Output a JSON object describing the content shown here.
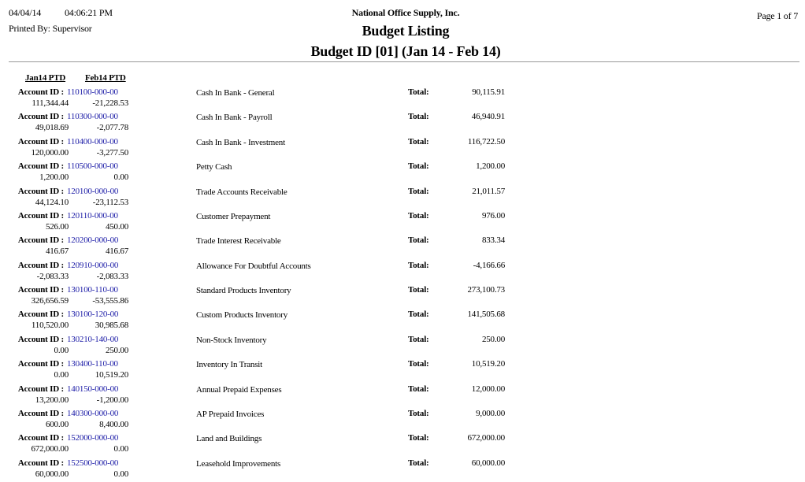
{
  "header": {
    "date": "04/04/14",
    "time": "04:06:21 PM",
    "printed_by": "Printed By: Supervisor",
    "company": "National Office Supply, Inc.",
    "title": "Budget Listing",
    "subtitle": "Budget ID [01] (Jan 14 - Feb 14)",
    "page": "Page 1 of 7"
  },
  "columns": {
    "jan": "Jan14 PTD",
    "feb": "Feb14 PTD"
  },
  "labels": {
    "account_id": "Account ID :",
    "total": "Total:"
  },
  "rows": [
    {
      "account": "110100-000-00",
      "jan": "111,344.44",
      "feb": "-21,228.53",
      "description": "Cash In Bank - General",
      "total": "90,115.91"
    },
    {
      "account": "110300-000-00",
      "jan": "49,018.69",
      "feb": "-2,077.78",
      "description": "Cash In Bank - Payroll",
      "total": "46,940.91"
    },
    {
      "account": "110400-000-00",
      "jan": "120,000.00",
      "feb": "-3,277.50",
      "description": "Cash In Bank - Investment",
      "total": "116,722.50"
    },
    {
      "account": "110500-000-00",
      "jan": "1,200.00",
      "feb": "0.00",
      "description": "Petty Cash",
      "total": "1,200.00"
    },
    {
      "account": "120100-000-00",
      "jan": "44,124.10",
      "feb": "-23,112.53",
      "description": "Trade Accounts Receivable",
      "total": "21,011.57"
    },
    {
      "account": "120110-000-00",
      "jan": "526.00",
      "feb": "450.00",
      "description": "Customer Prepayment",
      "total": "976.00"
    },
    {
      "account": "120200-000-00",
      "jan": "416.67",
      "feb": "416.67",
      "description": "Trade Interest Receivable",
      "total": "833.34"
    },
    {
      "account": "120910-000-00",
      "jan": "-2,083.33",
      "feb": "-2,083.33",
      "description": "Allowance For Doubtful Accounts",
      "total": "-4,166.66"
    },
    {
      "account": "130100-110-00",
      "jan": "326,656.59",
      "feb": "-53,555.86",
      "description": "Standard Products Inventory",
      "total": "273,100.73"
    },
    {
      "account": "130100-120-00",
      "jan": "110,520.00",
      "feb": "30,985.68",
      "description": "Custom Products Inventory",
      "total": "141,505.68"
    },
    {
      "account": "130210-140-00",
      "jan": "0.00",
      "feb": "250.00",
      "description": "Non-Stock Inventory",
      "total": "250.00"
    },
    {
      "account": "130400-110-00",
      "jan": "0.00",
      "feb": "10,519.20",
      "description": "Inventory In Transit",
      "total": "10,519.20"
    },
    {
      "account": "140150-000-00",
      "jan": "13,200.00",
      "feb": "-1,200.00",
      "description": "Annual Prepaid Expenses",
      "total": "12,000.00"
    },
    {
      "account": "140300-000-00",
      "jan": "600.00",
      "feb": "8,400.00",
      "description": "AP Prepaid Invoices",
      "total": "9,000.00"
    },
    {
      "account": "152000-000-00",
      "jan": "672,000.00",
      "feb": "0.00",
      "description": "Land and Buildings",
      "total": "672,000.00"
    },
    {
      "account": "152500-000-00",
      "jan": "60,000.00",
      "feb": "0.00",
      "description": "Leasehold Improvements",
      "total": "60,000.00"
    }
  ]
}
